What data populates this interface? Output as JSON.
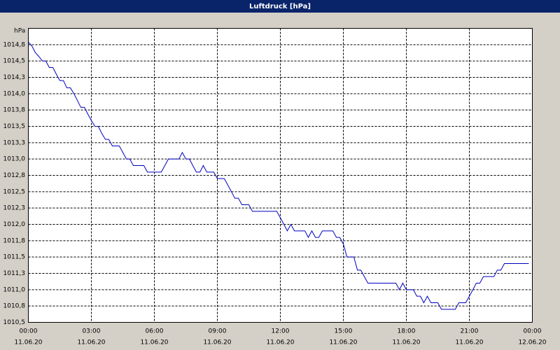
{
  "chart_data": {
    "type": "line",
    "title": "Luftdruck [hPa]",
    "y_unit": "hPa",
    "xlim": [
      0,
      24
    ],
    "xticks": [
      {
        "value": 0,
        "label": "00:00",
        "sublabel": "11.06.20"
      },
      {
        "value": 3,
        "label": "03:00",
        "sublabel": "11.06.20"
      },
      {
        "value": 6,
        "label": "06:00",
        "sublabel": "11.06.20"
      },
      {
        "value": 9,
        "label": "09:00",
        "sublabel": "11.06.20"
      },
      {
        "value": 12,
        "label": "12:00",
        "sublabel": "11.06.20"
      },
      {
        "value": 15,
        "label": "15:00",
        "sublabel": "11.06.20"
      },
      {
        "value": 18,
        "label": "18:00",
        "sublabel": "11.06.20"
      },
      {
        "value": 21,
        "label": "21:00",
        "sublabel": "11.06.20"
      },
      {
        "value": 24,
        "label": "00:00",
        "sublabel": "12.06.20"
      }
    ],
    "ylim": [
      1010.5,
      1015.0
    ],
    "yticks": [
      {
        "value": 1010.5,
        "label": "1010,5"
      },
      {
        "value": 1010.75,
        "label": "1010,8"
      },
      {
        "value": 1011,
        "label": "1011,0"
      },
      {
        "value": 1011.25,
        "label": "1011,3"
      },
      {
        "value": 1011.5,
        "label": "1011,5"
      },
      {
        "value": 1011.75,
        "label": "1011,8"
      },
      {
        "value": 1012,
        "label": "1012,0"
      },
      {
        "value": 1012.25,
        "label": "1012,3"
      },
      {
        "value": 1012.5,
        "label": "1012,5"
      },
      {
        "value": 1012.75,
        "label": "1012,8"
      },
      {
        "value": 1013,
        "label": "1013,0"
      },
      {
        "value": 1013.25,
        "label": "1013,3"
      },
      {
        "value": 1013.5,
        "label": "1013,5"
      },
      {
        "value": 1013.75,
        "label": "1013,8"
      },
      {
        "value": 1014,
        "label": "1014,0"
      },
      {
        "value": 1014.25,
        "label": "1014,3"
      },
      {
        "value": 1014.5,
        "label": "1014,5"
      },
      {
        "value": 1014.75,
        "label": "1014,8"
      }
    ],
    "grid": true,
    "x": [
      0,
      0.17,
      0.33,
      0.5,
      0.67,
      0.83,
      1,
      1.17,
      1.33,
      1.5,
      1.67,
      1.83,
      2,
      2.17,
      2.33,
      2.5,
      2.67,
      2.83,
      3,
      3.17,
      3.33,
      3.5,
      3.67,
      3.83,
      4,
      4.17,
      4.33,
      4.5,
      4.67,
      4.83,
      5,
      5.33,
      5.5,
      5.67,
      6,
      6.33,
      6.5,
      6.67,
      7,
      7.17,
      7.33,
      7.5,
      7.67,
      7.83,
      8,
      8.17,
      8.33,
      8.5,
      8.83,
      9,
      9.33,
      9.5,
      9.67,
      9.83,
      10,
      10.17,
      10.5,
      10.67,
      11,
      11.33,
      11.67,
      11.83,
      12,
      12.17,
      12.33,
      12.5,
      12.67,
      13,
      13.17,
      13.33,
      13.5,
      13.67,
      13.83,
      14,
      14.33,
      14.5,
      14.67,
      14.83,
      15,
      15.17,
      15.33,
      15.5,
      15.67,
      15.83,
      16,
      16.17,
      16.5,
      16.83,
      17.33,
      17.5,
      17.67,
      17.83,
      18,
      18.33,
      18.5,
      18.67,
      18.83,
      19,
      19.17,
      19.5,
      19.67,
      20,
      20.33,
      20.5,
      20.83,
      21,
      21.17,
      21.33,
      21.5,
      21.67,
      22.17,
      22.33,
      22.5,
      22.67,
      23,
      23.83
    ],
    "series": [
      {
        "name": "Luftdruck",
        "color": "#0000c0",
        "values": [
          1014.79,
          1014.73,
          1014.63,
          1014.57,
          1014.5,
          1014.5,
          1014.4,
          1014.4,
          1014.3,
          1014.2,
          1014.2,
          1014.09,
          1014.09,
          1014.0,
          1013.9,
          1013.79,
          1013.79,
          1013.69,
          1013.59,
          1013.5,
          1013.5,
          1013.39,
          1013.3,
          1013.3,
          1013.2,
          1013.2,
          1013.2,
          1013.1,
          1013.0,
          1013.0,
          1012.9,
          1012.9,
          1012.9,
          1012.8,
          1012.8,
          1012.8,
          1012.9,
          1013.0,
          1013.0,
          1013.0,
          1013.1,
          1013.0,
          1013.0,
          1012.9,
          1012.8,
          1012.8,
          1012.9,
          1012.8,
          1012.8,
          1012.7,
          1012.7,
          1012.6,
          1012.5,
          1012.4,
          1012.4,
          1012.3,
          1012.3,
          1012.2,
          1012.2,
          1012.2,
          1012.2,
          1012.2,
          1012.1,
          1012.0,
          1011.9,
          1012.0,
          1011.9,
          1011.9,
          1011.9,
          1011.8,
          1011.9,
          1011.8,
          1011.8,
          1011.9,
          1011.9,
          1011.9,
          1011.8,
          1011.8,
          1011.7,
          1011.5,
          1011.5,
          1011.5,
          1011.3,
          1011.3,
          1011.2,
          1011.1,
          1011.1,
          1011.1,
          1011.1,
          1011.1,
          1011.0,
          1011.1,
          1011.0,
          1011.0,
          1010.9,
          1010.9,
          1010.8,
          1010.9,
          1010.8,
          1010.8,
          1010.7,
          1010.7,
          1010.7,
          1010.8,
          1010.8,
          1010.9,
          1011.0,
          1011.1,
          1011.1,
          1011.2,
          1011.2,
          1011.3,
          1011.3,
          1011.4,
          1011.4,
          1011.4
        ]
      }
    ]
  }
}
